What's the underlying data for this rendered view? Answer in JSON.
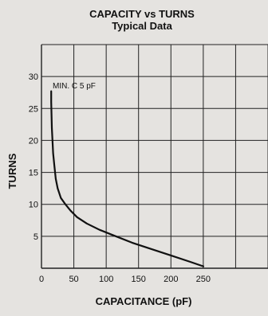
{
  "chart_data": {
    "type": "line",
    "title": "CAPACITY vs TURNS",
    "subtitle": "Typical Data",
    "xlabel": "CAPACITANCE (pF)",
    "ylabel": "TURNS",
    "xlim": [
      0,
      350
    ],
    "ylim": [
      0,
      35
    ],
    "x_ticks": [
      0,
      50,
      100,
      150,
      200,
      250
    ],
    "y_ticks": [
      5,
      10,
      15,
      20,
      25,
      30
    ],
    "grid": true,
    "annotation": "MIN. C 5 pF",
    "series": [
      {
        "points": [
          [
            15,
            27.7
          ],
          [
            15,
            26
          ],
          [
            15.5,
            24
          ],
          [
            16,
            22
          ],
          [
            17,
            20
          ],
          [
            18,
            18
          ],
          [
            20,
            16
          ],
          [
            22,
            14
          ],
          [
            25,
            12.5
          ],
          [
            30,
            11
          ],
          [
            37,
            10
          ],
          [
            45,
            9
          ],
          [
            55,
            8
          ],
          [
            70,
            7
          ],
          [
            90,
            6
          ],
          [
            110,
            5.2
          ],
          [
            140,
            4
          ],
          [
            170,
            3
          ],
          [
            200,
            2
          ],
          [
            230,
            1
          ],
          [
            250,
            0.3
          ]
        ]
      }
    ]
  }
}
